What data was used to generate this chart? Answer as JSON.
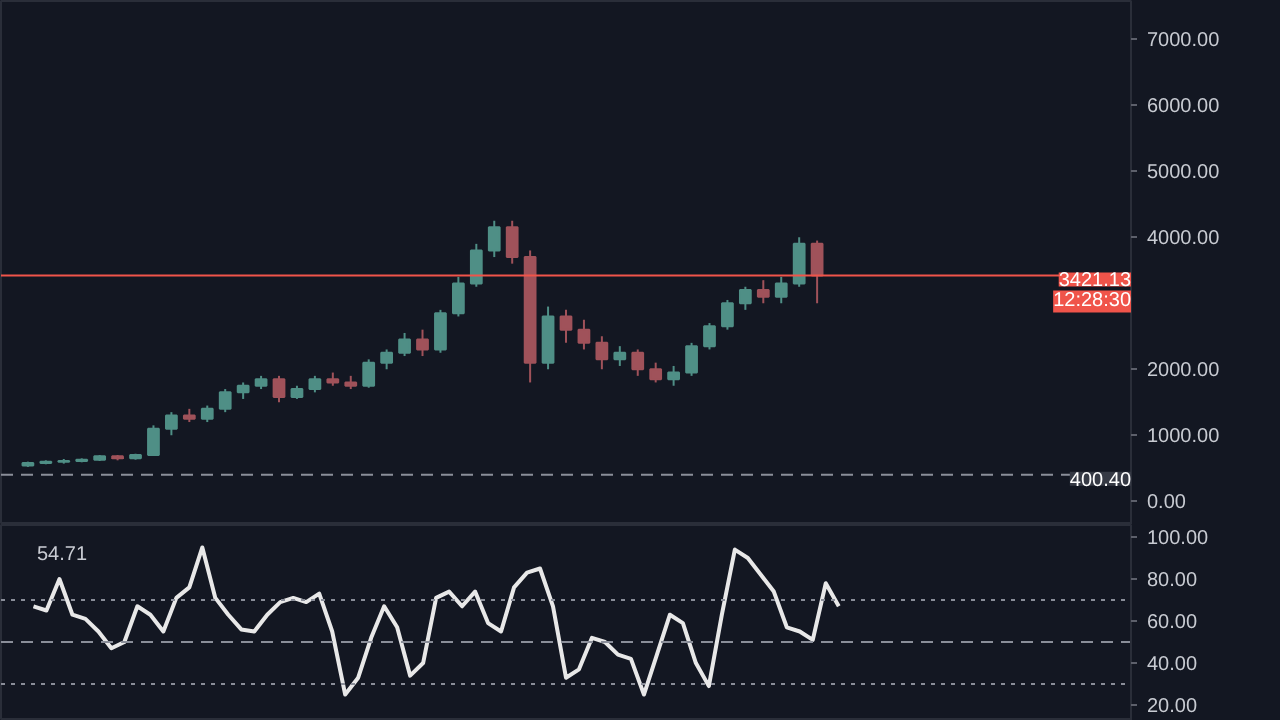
{
  "chart_data": [
    {
      "type": "candlestick",
      "categories": [
        null,
        null,
        null,
        null,
        null,
        null,
        null,
        null,
        null,
        null,
        null,
        null,
        null,
        null,
        null,
        null,
        null,
        null,
        null,
        null,
        null,
        null,
        null,
        null,
        null,
        null,
        null,
        null,
        null,
        null,
        null,
        null,
        null,
        null,
        null,
        null,
        null,
        null,
        null,
        null,
        null,
        null,
        null,
        null,
        null,
        null,
        null,
        null,
        null,
        null,
        null,
        null,
        null,
        null,
        null,
        null,
        null,
        null,
        null,
        null,
        null,
        null,
        null
      ],
      "ohlc": [
        null,
        [
          540,
          600,
          520,
          580
        ],
        [
          580,
          620,
          560,
          600
        ],
        [
          600,
          640,
          570,
          610
        ],
        [
          610,
          650,
          590,
          630
        ],
        [
          630,
          700,
          610,
          680
        ],
        [
          680,
          700,
          620,
          650
        ],
        [
          650,
          720,
          630,
          700
        ],
        [
          700,
          1150,
          690,
          1100
        ],
        [
          1100,
          1350,
          1000,
          1300
        ],
        [
          1300,
          1400,
          1200,
          1250
        ],
        [
          1250,
          1450,
          1200,
          1400
        ],
        [
          1400,
          1700,
          1350,
          1650
        ],
        [
          1650,
          1800,
          1550,
          1750
        ],
        [
          1750,
          1900,
          1700,
          1850
        ],
        [
          1850,
          1900,
          1500,
          1580
        ],
        [
          1580,
          1750,
          1550,
          1700
        ],
        [
          1700,
          1900,
          1650,
          1850
        ],
        [
          1850,
          1950,
          1750,
          1800
        ],
        [
          1800,
          1900,
          1700,
          1750
        ],
        [
          1750,
          2150,
          1720,
          2100
        ],
        [
          2100,
          2300,
          2000,
          2250
        ],
        [
          2250,
          2550,
          2200,
          2450
        ],
        [
          2450,
          2600,
          2200,
          2300
        ],
        [
          2300,
          2900,
          2250,
          2850
        ],
        [
          2850,
          3400,
          2800,
          3300
        ],
        [
          3300,
          3900,
          3250,
          3800
        ],
        [
          3800,
          4250,
          3700,
          4150
        ],
        [
          4150,
          4250,
          3600,
          3700
        ],
        [
          3700,
          3800,
          1800,
          2100
        ],
        [
          2100,
          2950,
          2000,
          2800
        ],
        [
          2800,
          2900,
          2400,
          2600
        ],
        [
          2600,
          2750,
          2300,
          2400
        ],
        [
          2400,
          2500,
          2000,
          2150
        ],
        [
          2150,
          2350,
          2050,
          2250
        ],
        [
          2250,
          2300,
          1900,
          2000
        ],
        [
          2000,
          2100,
          1800,
          1850
        ],
        [
          1850,
          2050,
          1750,
          1950
        ],
        [
          1950,
          2400,
          1900,
          2350
        ],
        [
          2350,
          2700,
          2300,
          2650
        ],
        [
          2650,
          3050,
          2600,
          3000
        ],
        [
          3000,
          3250,
          2900,
          3200
        ],
        [
          3200,
          3350,
          3000,
          3100
        ],
        [
          3100,
          3400,
          3000,
          3300
        ],
        [
          3300,
          4000,
          3250,
          3900
        ],
        [
          3900,
          3950,
          3000,
          3421.13
        ],
        null,
        null,
        null,
        null,
        null,
        null,
        null,
        null,
        null,
        null,
        null,
        null,
        null,
        null,
        null,
        null,
        null
      ],
      "colors": [
        null,
        "#4f8f86",
        "#4f8f86",
        "#4f8f86",
        "#4f8f86",
        "#4f8f86",
        "#a0525a",
        "#4f8f86",
        "#4f8f86",
        "#4f8f86",
        "#a0525a",
        "#4f8f86",
        "#4f8f86",
        "#4f8f86",
        "#4f8f86",
        "#a0525a",
        "#4f8f86",
        "#4f8f86",
        "#a0525a",
        "#a0525a",
        "#4f8f86",
        "#4f8f86",
        "#4f8f86",
        "#a0525a",
        "#4f8f86",
        "#4f8f86",
        "#4f8f86",
        "#4f8f86",
        "#a0525a",
        "#a0525a",
        "#4f8f86",
        "#a0525a",
        "#a0525a",
        "#a0525a",
        "#4f8f86",
        "#a0525a",
        "#a0525a",
        "#4f8f86",
        "#4f8f86",
        "#4f8f86",
        "#4f8f86",
        "#4f8f86",
        "#a0525a",
        "#4f8f86",
        "#4f8f86",
        "#a0525a",
        null,
        null,
        null,
        null,
        null,
        null,
        null,
        null,
        null,
        null,
        null,
        null,
        null,
        null,
        null,
        null,
        null
      ],
      "ylim": [
        -360,
        7580
      ],
      "yticks": [
        {
          "value": 0,
          "label": "0.00"
        },
        {
          "value": 1000,
          "label": "1000.00"
        },
        {
          "value": 2000,
          "label": "2000.00"
        },
        {
          "value": 4000,
          "label": "4000.00"
        },
        {
          "value": 5000,
          "label": "5000.00"
        },
        {
          "value": 6000,
          "label": "6000.00"
        },
        {
          "value": 7000,
          "label": "7000.00"
        }
      ],
      "ref_lines": [
        {
          "axis": "y",
          "value": 3421.13,
          "label": "3421.13",
          "color": "#f0544a",
          "line_style": "solid"
        },
        {
          "axis": "y",
          "value": 400.4,
          "label": "400.40",
          "color": "#8a8e99",
          "line_style": "dashed"
        }
      ],
      "annotations": [
        {
          "text": "12:28:30",
          "y": 3421.13
        }
      ],
      "tick_labels": "y",
      "grid": false
    },
    {
      "type": "line",
      "categories": [
        null,
        null,
        null,
        null,
        null,
        null,
        null,
        null,
        null,
        null,
        null,
        null,
        null,
        null,
        null,
        null,
        null,
        null,
        null,
        null,
        null,
        null,
        null,
        null,
        null,
        null,
        null,
        null,
        null,
        null,
        null,
        null,
        null,
        null,
        null,
        null,
        null,
        null,
        null,
        null,
        null,
        null,
        null,
        null,
        null,
        null,
        null,
        null,
        null,
        null,
        null,
        null,
        null,
        null,
        null,
        null,
        null,
        null,
        null,
        null,
        null,
        null,
        null,
        null,
        null,
        null,
        null,
        null,
        null,
        null,
        null,
        null,
        null,
        null,
        null,
        null,
        null,
        null,
        null,
        null,
        null,
        null,
        null,
        null,
        null,
        null,
        null
      ],
      "series": [
        {
          "color": "#e8e8e8",
          "values": [
            null,
            null,
            67,
            65,
            80,
            63,
            61,
            55,
            47,
            50,
            67,
            63,
            55,
            71,
            76,
            95,
            71,
            63,
            56,
            55,
            63,
            69,
            71,
            69,
            73,
            55,
            25,
            33,
            52,
            67,
            57,
            34,
            40,
            71,
            74,
            67,
            74,
            59,
            55,
            76,
            83,
            85,
            67,
            33,
            37,
            52,
            50,
            44,
            42,
            25,
            44,
            63,
            59,
            40,
            29,
            63,
            94,
            90,
            82,
            74,
            57,
            55,
            51,
            78,
            67,
            null,
            null,
            null,
            null,
            null,
            null,
            null,
            null,
            null,
            null,
            null,
            null,
            null,
            null,
            null,
            null,
            null,
            null,
            null,
            null,
            null,
            null
          ]
        }
      ],
      "ylim": [
        12.4,
        105.7
      ],
      "yticks": [
        {
          "value": 20,
          "label": "20.00"
        },
        {
          "value": 40,
          "label": "40.00"
        },
        {
          "value": 60,
          "label": "60.00"
        },
        {
          "value": 80,
          "label": "80.00"
        },
        {
          "value": 100,
          "label": "100.00"
        }
      ],
      "ref_lines": [
        {
          "axis": "y",
          "value": 70,
          "color": "#8a8e99",
          "line_style": "dotted"
        },
        {
          "axis": "y",
          "value": 50,
          "color": "#8a8e99",
          "line_style": "dashed"
        },
        {
          "axis": "y",
          "value": 30,
          "color": "#8a8e99",
          "line_style": "dotted"
        }
      ],
      "annotations": [
        "54.71"
      ],
      "tick_labels": "y",
      "grid": false,
      "marker": "none",
      "line_style": "solid"
    }
  ]
}
